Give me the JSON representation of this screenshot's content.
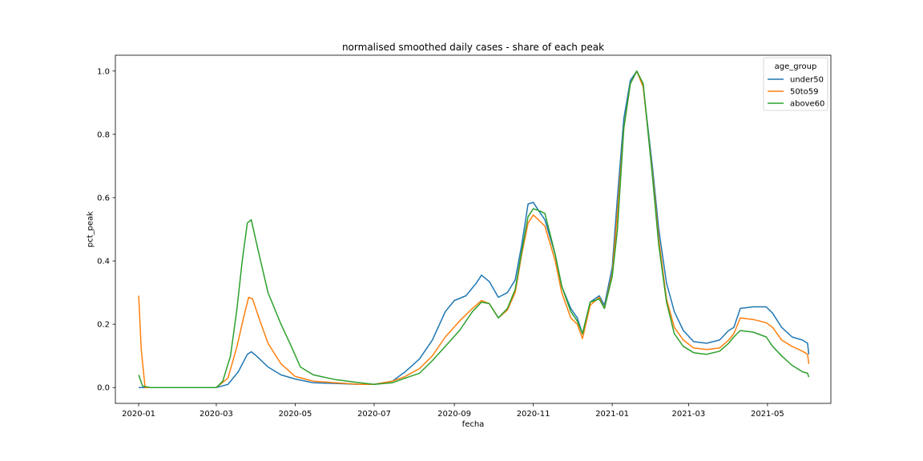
{
  "chart_data": {
    "type": "line",
    "title": "normalised smoothed daily cases - share of each peak",
    "xlabel": "fecha",
    "ylabel": "pct_peak",
    "xlim": [
      "2019-12-14",
      "2021-06-19"
    ],
    "ylim": [
      -0.05,
      1.05
    ],
    "x_ticks": [
      "2020-01",
      "2020-03",
      "2020-05",
      "2020-07",
      "2020-09",
      "2020-11",
      "2021-01",
      "2021-03",
      "2021-05"
    ],
    "y_ticks": [
      "0.0",
      "0.2",
      "0.4",
      "0.6",
      "0.8",
      "1.0"
    ],
    "grid": false,
    "legend": {
      "title": "age_group",
      "position": "upper right"
    },
    "series": [
      {
        "name": "under50",
        "color": "#1f77b4",
        "points": [
          [
            "2020-01-01",
            0.0
          ],
          [
            "2020-02-01",
            0.0
          ],
          [
            "2020-03-01",
            0.0
          ],
          [
            "2020-03-10",
            0.01
          ],
          [
            "2020-03-18",
            0.05
          ],
          [
            "2020-03-25",
            0.105
          ],
          [
            "2020-03-28",
            0.113
          ],
          [
            "2020-04-01",
            0.1
          ],
          [
            "2020-04-10",
            0.065
          ],
          [
            "2020-04-20",
            0.04
          ],
          [
            "2020-05-01",
            0.027
          ],
          [
            "2020-05-15",
            0.015
          ],
          [
            "2020-06-01",
            0.013
          ],
          [
            "2020-06-20",
            0.01
          ],
          [
            "2020-07-01",
            0.01
          ],
          [
            "2020-07-15",
            0.02
          ],
          [
            "2020-07-25",
            0.05
          ],
          [
            "2020-08-05",
            0.09
          ],
          [
            "2020-08-15",
            0.15
          ],
          [
            "2020-08-25",
            0.24
          ],
          [
            "2020-09-01",
            0.275
          ],
          [
            "2020-09-10",
            0.29
          ],
          [
            "2020-09-18",
            0.33
          ],
          [
            "2020-09-22",
            0.355
          ],
          [
            "2020-09-28",
            0.335
          ],
          [
            "2020-10-05",
            0.285
          ],
          [
            "2020-10-12",
            0.3
          ],
          [
            "2020-10-18",
            0.34
          ],
          [
            "2020-10-23",
            0.45
          ],
          [
            "2020-10-28",
            0.58
          ],
          [
            "2020-11-01",
            0.585
          ],
          [
            "2020-11-05",
            0.56
          ],
          [
            "2020-11-10",
            0.53
          ],
          [
            "2020-11-18",
            0.42
          ],
          [
            "2020-11-23",
            0.32
          ],
          [
            "2020-11-30",
            0.25
          ],
          [
            "2020-12-05",
            0.22
          ],
          [
            "2020-12-09",
            0.17
          ],
          [
            "2020-12-15",
            0.27
          ],
          [
            "2020-12-22",
            0.29
          ],
          [
            "2020-12-26",
            0.26
          ],
          [
            "2021-01-01",
            0.38
          ],
          [
            "2021-01-05",
            0.6
          ],
          [
            "2021-01-10",
            0.85
          ],
          [
            "2021-01-15",
            0.97
          ],
          [
            "2021-01-20",
            1.0
          ],
          [
            "2021-01-25",
            0.95
          ],
          [
            "2021-02-01",
            0.7
          ],
          [
            "2021-02-06",
            0.5
          ],
          [
            "2021-02-12",
            0.33
          ],
          [
            "2021-02-18",
            0.24
          ],
          [
            "2021-02-25",
            0.18
          ],
          [
            "2021-03-05",
            0.145
          ],
          [
            "2021-03-15",
            0.14
          ],
          [
            "2021-03-25",
            0.15
          ],
          [
            "2021-04-01",
            0.18
          ],
          [
            "2021-04-05",
            0.19
          ],
          [
            "2021-04-10",
            0.25
          ],
          [
            "2021-04-20",
            0.255
          ],
          [
            "2021-04-30",
            0.255
          ],
          [
            "2021-05-05",
            0.235
          ],
          [
            "2021-05-12",
            0.19
          ],
          [
            "2021-05-20",
            0.16
          ],
          [
            "2021-05-28",
            0.15
          ],
          [
            "2021-06-01",
            0.14
          ],
          [
            "2021-06-02",
            0.105
          ]
        ]
      },
      {
        "name": "50to59",
        "color": "#ff7f0e",
        "points": [
          [
            "2020-01-01",
            0.29
          ],
          [
            "2020-01-03",
            0.12
          ],
          [
            "2020-01-06",
            0.0
          ],
          [
            "2020-02-01",
            0.0
          ],
          [
            "2020-03-01",
            0.0
          ],
          [
            "2020-03-10",
            0.03
          ],
          [
            "2020-03-17",
            0.13
          ],
          [
            "2020-03-22",
            0.22
          ],
          [
            "2020-03-26",
            0.285
          ],
          [
            "2020-03-29",
            0.28
          ],
          [
            "2020-04-03",
            0.22
          ],
          [
            "2020-04-10",
            0.14
          ],
          [
            "2020-04-20",
            0.075
          ],
          [
            "2020-05-01",
            0.035
          ],
          [
            "2020-05-15",
            0.02
          ],
          [
            "2020-06-01",
            0.015
          ],
          [
            "2020-06-20",
            0.01
          ],
          [
            "2020-07-01",
            0.01
          ],
          [
            "2020-07-15",
            0.02
          ],
          [
            "2020-07-25",
            0.035
          ],
          [
            "2020-08-05",
            0.06
          ],
          [
            "2020-08-15",
            0.1
          ],
          [
            "2020-08-25",
            0.16
          ],
          [
            "2020-09-05",
            0.21
          ],
          [
            "2020-09-15",
            0.25
          ],
          [
            "2020-09-22",
            0.275
          ],
          [
            "2020-09-28",
            0.265
          ],
          [
            "2020-10-05",
            0.22
          ],
          [
            "2020-10-12",
            0.245
          ],
          [
            "2020-10-18",
            0.3
          ],
          [
            "2020-10-23",
            0.42
          ],
          [
            "2020-10-28",
            0.52
          ],
          [
            "2020-11-01",
            0.545
          ],
          [
            "2020-11-05",
            0.53
          ],
          [
            "2020-11-10",
            0.51
          ],
          [
            "2020-11-18",
            0.4
          ],
          [
            "2020-11-23",
            0.3
          ],
          [
            "2020-11-30",
            0.22
          ],
          [
            "2020-12-05",
            0.2
          ],
          [
            "2020-12-09",
            0.155
          ],
          [
            "2020-12-15",
            0.26
          ],
          [
            "2020-12-22",
            0.285
          ],
          [
            "2020-12-26",
            0.25
          ],
          [
            "2021-01-01",
            0.36
          ],
          [
            "2021-01-05",
            0.55
          ],
          [
            "2021-01-10",
            0.82
          ],
          [
            "2021-01-15",
            0.96
          ],
          [
            "2021-01-20",
            1.0
          ],
          [
            "2021-01-25",
            0.95
          ],
          [
            "2021-02-01",
            0.68
          ],
          [
            "2021-02-06",
            0.47
          ],
          [
            "2021-02-12",
            0.28
          ],
          [
            "2021-02-18",
            0.19
          ],
          [
            "2021-02-25",
            0.15
          ],
          [
            "2021-03-05",
            0.125
          ],
          [
            "2021-03-15",
            0.12
          ],
          [
            "2021-03-25",
            0.125
          ],
          [
            "2021-04-01",
            0.15
          ],
          [
            "2021-04-05",
            0.17
          ],
          [
            "2021-04-10",
            0.22
          ],
          [
            "2021-04-20",
            0.215
          ],
          [
            "2021-04-30",
            0.205
          ],
          [
            "2021-05-05",
            0.19
          ],
          [
            "2021-05-12",
            0.15
          ],
          [
            "2021-05-20",
            0.13
          ],
          [
            "2021-05-28",
            0.115
          ],
          [
            "2021-06-01",
            0.105
          ],
          [
            "2021-06-02",
            0.075
          ]
        ]
      },
      {
        "name": "above60",
        "color": "#2ca02c",
        "points": [
          [
            "2020-01-01",
            0.04
          ],
          [
            "2020-01-04",
            0.005
          ],
          [
            "2020-01-10",
            0.0
          ],
          [
            "2020-02-01",
            0.0
          ],
          [
            "2020-03-01",
            0.0
          ],
          [
            "2020-03-06",
            0.02
          ],
          [
            "2020-03-12",
            0.1
          ],
          [
            "2020-03-17",
            0.25
          ],
          [
            "2020-03-21",
            0.4
          ],
          [
            "2020-03-25",
            0.52
          ],
          [
            "2020-03-28",
            0.53
          ],
          [
            "2020-04-02",
            0.44
          ],
          [
            "2020-04-10",
            0.3
          ],
          [
            "2020-04-20",
            0.2
          ],
          [
            "2020-04-28",
            0.13
          ],
          [
            "2020-05-05",
            0.065
          ],
          [
            "2020-05-15",
            0.04
          ],
          [
            "2020-06-01",
            0.025
          ],
          [
            "2020-06-20",
            0.015
          ],
          [
            "2020-07-01",
            0.01
          ],
          [
            "2020-07-15",
            0.015
          ],
          [
            "2020-07-25",
            0.03
          ],
          [
            "2020-08-05",
            0.045
          ],
          [
            "2020-08-15",
            0.085
          ],
          [
            "2020-08-25",
            0.13
          ],
          [
            "2020-09-05",
            0.18
          ],
          [
            "2020-09-15",
            0.24
          ],
          [
            "2020-09-22",
            0.27
          ],
          [
            "2020-09-28",
            0.265
          ],
          [
            "2020-10-05",
            0.22
          ],
          [
            "2020-10-12",
            0.25
          ],
          [
            "2020-10-18",
            0.31
          ],
          [
            "2020-10-23",
            0.43
          ],
          [
            "2020-10-28",
            0.54
          ],
          [
            "2020-11-01",
            0.565
          ],
          [
            "2020-11-05",
            0.56
          ],
          [
            "2020-11-10",
            0.55
          ],
          [
            "2020-11-18",
            0.42
          ],
          [
            "2020-11-23",
            0.32
          ],
          [
            "2020-11-30",
            0.24
          ],
          [
            "2020-12-05",
            0.21
          ],
          [
            "2020-12-09",
            0.17
          ],
          [
            "2020-12-15",
            0.27
          ],
          [
            "2020-12-22",
            0.28
          ],
          [
            "2020-12-26",
            0.25
          ],
          [
            "2021-01-01",
            0.35
          ],
          [
            "2021-01-05",
            0.5
          ],
          [
            "2021-01-10",
            0.82
          ],
          [
            "2021-01-15",
            0.96
          ],
          [
            "2021-01-20",
            1.0
          ],
          [
            "2021-01-25",
            0.96
          ],
          [
            "2021-02-01",
            0.67
          ],
          [
            "2021-02-06",
            0.45
          ],
          [
            "2021-02-12",
            0.27
          ],
          [
            "2021-02-18",
            0.17
          ],
          [
            "2021-02-25",
            0.13
          ],
          [
            "2021-03-05",
            0.11
          ],
          [
            "2021-03-15",
            0.105
          ],
          [
            "2021-03-25",
            0.115
          ],
          [
            "2021-04-01",
            0.14
          ],
          [
            "2021-04-05",
            0.16
          ],
          [
            "2021-04-10",
            0.18
          ],
          [
            "2021-04-20",
            0.175
          ],
          [
            "2021-04-30",
            0.16
          ],
          [
            "2021-05-05",
            0.13
          ],
          [
            "2021-05-12",
            0.1
          ],
          [
            "2021-05-20",
            0.07
          ],
          [
            "2021-05-28",
            0.05
          ],
          [
            "2021-06-01",
            0.045
          ],
          [
            "2021-06-02",
            0.033
          ]
        ]
      }
    ]
  }
}
